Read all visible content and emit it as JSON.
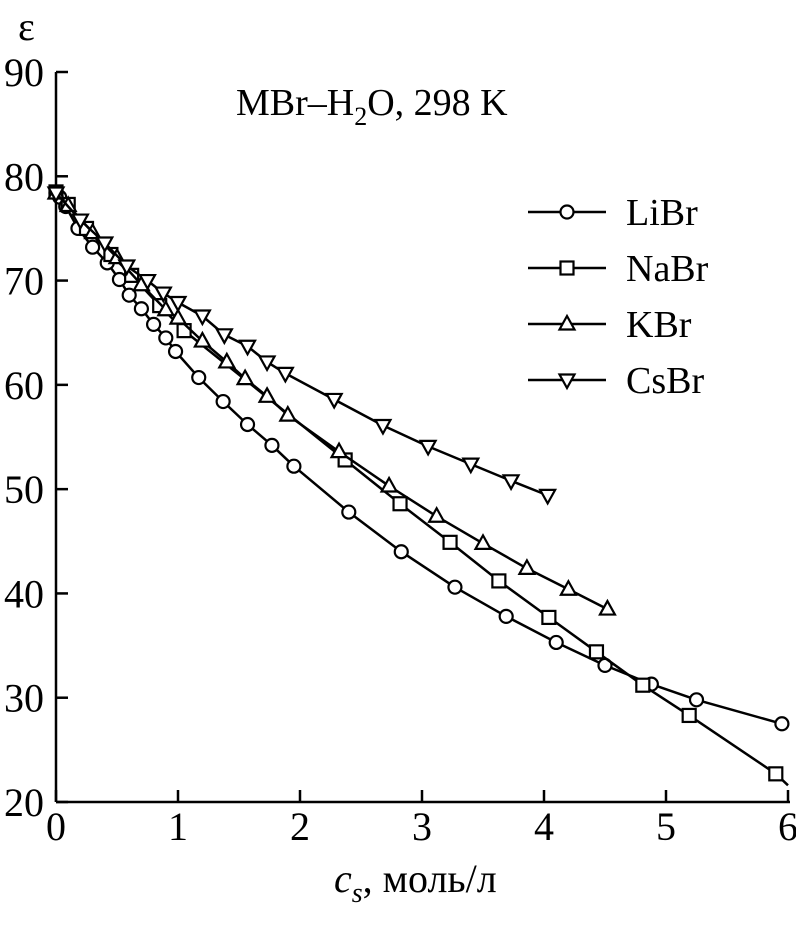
{
  "chart_data": {
    "type": "line",
    "title_parts": [
      "MBr–H",
      "2",
      "O, 298 K"
    ],
    "xlabel_parts": [
      "c",
      "s",
      ", моль/л"
    ],
    "ylabel": "ε",
    "xlim": [
      0,
      6
    ],
    "ylim": [
      20,
      90
    ],
    "x_ticks": [
      "0",
      "1",
      "2",
      "3",
      "4",
      "5",
      "6"
    ],
    "y_ticks": [
      "20",
      "30",
      "40",
      "50",
      "60",
      "70",
      "80",
      "90"
    ],
    "grid": false,
    "legend_position": "right",
    "series": [
      {
        "name": "LiBr",
        "marker": "circle",
        "points": [
          [
            0.0,
            78.4
          ],
          [
            0.03,
            78.0
          ],
          [
            0.08,
            77.1
          ],
          [
            0.18,
            75.0
          ],
          [
            0.3,
            73.2
          ],
          [
            0.42,
            71.7
          ],
          [
            0.52,
            70.1
          ],
          [
            0.6,
            68.6
          ],
          [
            0.7,
            67.3
          ],
          [
            0.8,
            65.8
          ],
          [
            0.9,
            64.5
          ],
          [
            0.98,
            63.2
          ],
          [
            1.17,
            60.7
          ],
          [
            1.37,
            58.4
          ],
          [
            1.57,
            56.2
          ],
          [
            1.77,
            54.2
          ],
          [
            1.95,
            52.2
          ],
          [
            2.4,
            47.8
          ],
          [
            2.83,
            44.0
          ],
          [
            3.27,
            40.6
          ],
          [
            3.69,
            37.8
          ],
          [
            4.1,
            35.3
          ],
          [
            4.5,
            33.1
          ],
          [
            4.88,
            31.3
          ],
          [
            5.25,
            29.8
          ],
          [
            5.95,
            27.5
          ],
          [
            6.0,
            27.3
          ]
        ]
      },
      {
        "name": "NaBr",
        "marker": "square",
        "points": [
          [
            0.0,
            78.5
          ],
          [
            0.1,
            77.3
          ],
          [
            0.25,
            75.0
          ],
          [
            0.45,
            72.5
          ],
          [
            0.62,
            70.5
          ],
          [
            0.85,
            67.6
          ],
          [
            1.05,
            65.2
          ],
          [
            2.37,
            52.8
          ],
          [
            2.82,
            48.6
          ],
          [
            3.23,
            44.9
          ],
          [
            3.63,
            41.2
          ],
          [
            4.04,
            37.7
          ],
          [
            4.43,
            34.4
          ],
          [
            4.81,
            31.2
          ],
          [
            5.19,
            28.3
          ],
          [
            5.9,
            22.7
          ],
          [
            6.0,
            21.6
          ]
        ]
      },
      {
        "name": "KBr",
        "marker": "triangle-up",
        "points": [
          [
            0.0,
            78.4
          ],
          [
            0.1,
            77.2
          ],
          [
            0.3,
            74.6
          ],
          [
            0.5,
            72.2
          ],
          [
            0.7,
            69.6
          ],
          [
            0.9,
            67.2
          ],
          [
            1.0,
            66.4
          ],
          [
            1.2,
            64.2
          ],
          [
            1.4,
            62.2
          ],
          [
            1.55,
            60.6
          ],
          [
            1.73,
            58.9
          ],
          [
            1.9,
            57.1
          ],
          [
            2.32,
            53.6
          ],
          [
            2.73,
            50.3
          ],
          [
            3.12,
            47.4
          ],
          [
            3.5,
            44.8
          ],
          [
            3.86,
            42.4
          ],
          [
            4.2,
            40.4
          ],
          [
            4.52,
            38.5
          ]
        ]
      },
      {
        "name": "CsBr",
        "marker": "triangle-down",
        "points": [
          [
            0.0,
            78.4
          ],
          [
            0.2,
            75.8
          ],
          [
            0.4,
            73.6
          ],
          [
            0.58,
            71.4
          ],
          [
            0.75,
            70.0
          ],
          [
            0.88,
            68.8
          ],
          [
            1.0,
            67.9
          ],
          [
            1.2,
            66.6
          ],
          [
            1.38,
            64.8
          ],
          [
            1.57,
            63.7
          ],
          [
            1.73,
            62.2
          ],
          [
            1.88,
            61.1
          ],
          [
            2.28,
            58.6
          ],
          [
            2.68,
            56.1
          ],
          [
            3.05,
            54.1
          ],
          [
            3.4,
            52.4
          ],
          [
            3.73,
            50.8
          ],
          [
            4.03,
            49.4
          ]
        ]
      }
    ]
  }
}
